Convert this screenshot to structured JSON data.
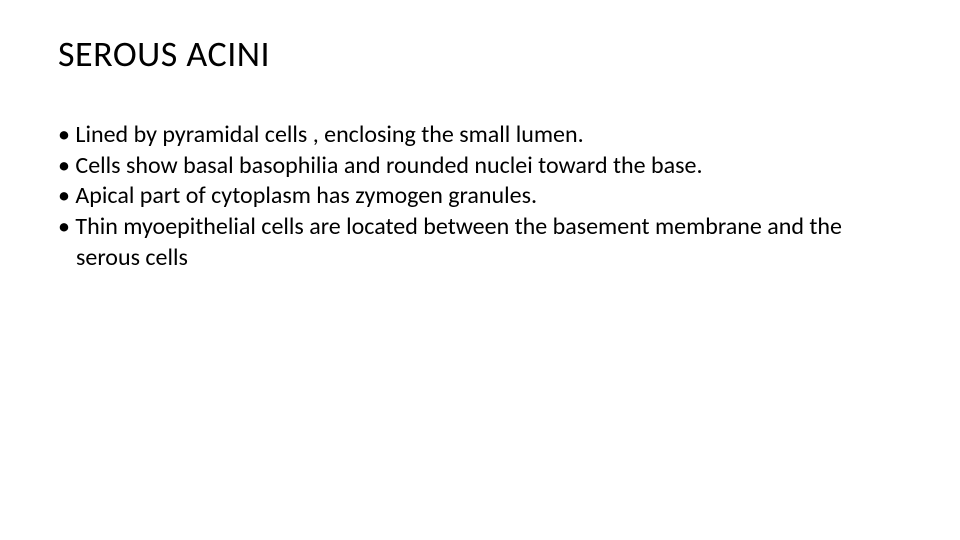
{
  "slide": {
    "title": "SEROUS ACINI",
    "title_fontsize": 36,
    "title_color": "#000000",
    "body_fontsize": 24,
    "body_color": "#000000",
    "background_color": "#ffffff",
    "font_family": "Calibri",
    "bullets": [
      {
        "text": "Lined by pyramidal cells , enclosing the small lumen."
      },
      {
        "text": "Cells show basal basophilia and rounded nuclei toward the base."
      },
      {
        "text": "Apical part of cytoplasm has zymogen granules."
      },
      {
        "text": "Thin myoepithelial cells are located between the basement membrane and the serous cells"
      }
    ]
  }
}
